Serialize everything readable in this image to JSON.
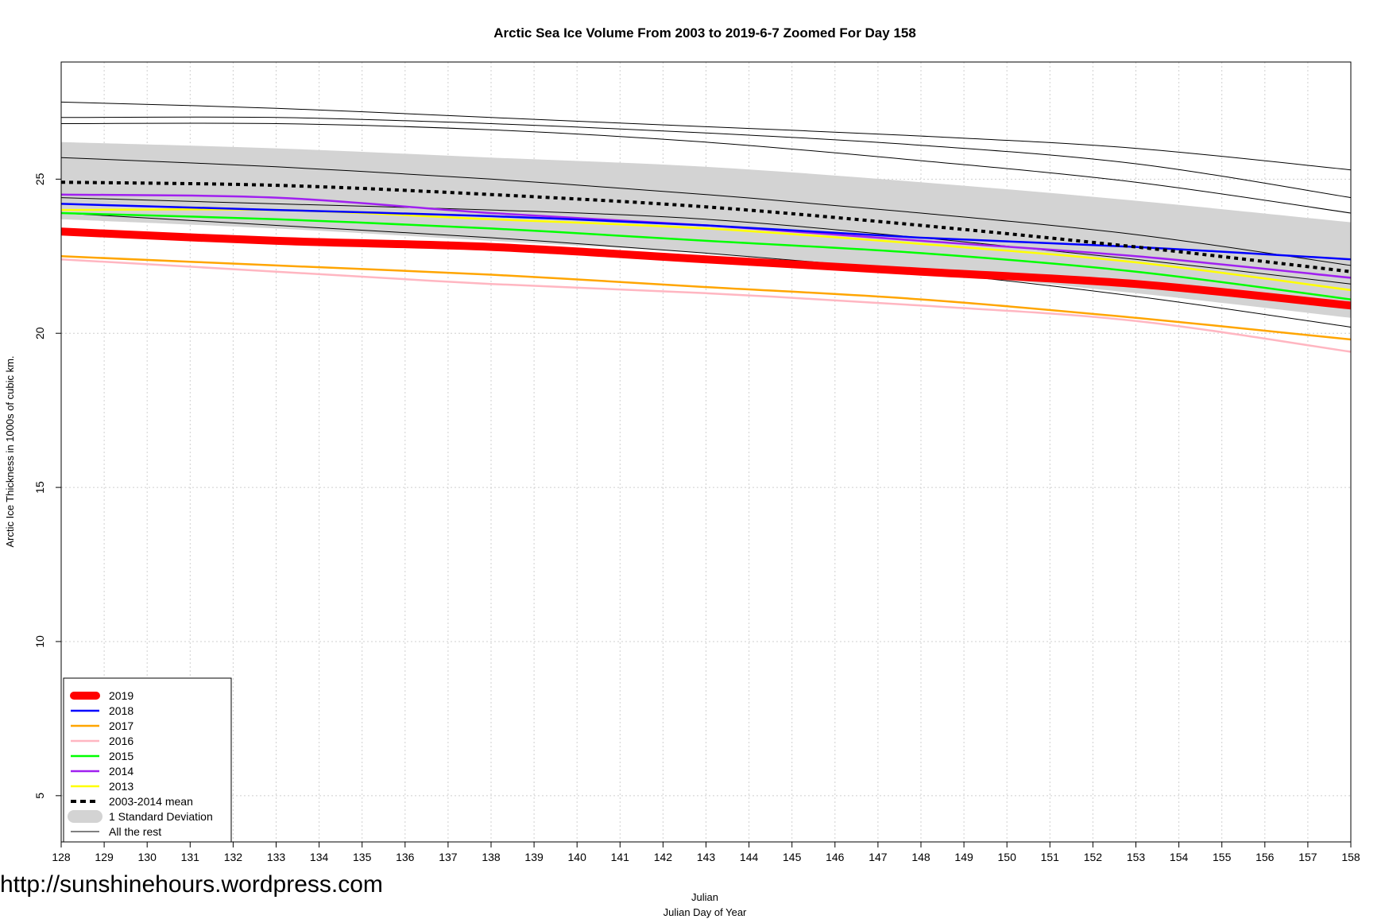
{
  "watermark": "http://sunshinehours.wordpress.com",
  "chart_data": {
    "type": "line",
    "title": "Arctic Sea Ice Volume From 2003 to 2019-6-7 Zoomed For Day 158",
    "xlabel": "Julian",
    "xlabel2": "Julian Day of Year",
    "ylabel": "Arctic Ice Thickness in 1000s of cubic km.",
    "xlim": [
      128,
      158
    ],
    "ylim": [
      3.5,
      28.8
    ],
    "x_ticks": [
      128,
      129,
      130,
      131,
      132,
      133,
      134,
      135,
      136,
      137,
      138,
      139,
      140,
      141,
      142,
      143,
      144,
      145,
      146,
      147,
      148,
      149,
      150,
      151,
      152,
      153,
      154,
      155,
      156,
      157,
      158
    ],
    "y_ticks": [
      5,
      10,
      15,
      20,
      25
    ],
    "grid": true,
    "x": [
      128,
      133,
      138,
      143,
      148,
      153,
      158
    ],
    "std_band": {
      "name": "1 Standard Deviation",
      "color": "#d3d3d3",
      "upper": [
        26.2,
        26.0,
        25.7,
        25.4,
        24.9,
        24.3,
        23.6
      ],
      "lower": [
        23.7,
        23.4,
        23.0,
        22.6,
        22.0,
        21.3,
        20.5
      ]
    },
    "mean": {
      "name": "2003-2014 mean",
      "color": "#000000",
      "values": [
        24.9,
        24.8,
        24.5,
        24.1,
        23.5,
        22.8,
        22.0
      ]
    },
    "rest": {
      "name": "All the rest",
      "color": "#000000",
      "lines": [
        [
          27.5,
          27.3,
          27.0,
          26.7,
          26.4,
          26.0,
          25.3
        ],
        [
          27.0,
          27.0,
          26.8,
          26.5,
          26.1,
          25.5,
          24.4
        ],
        [
          26.8,
          26.8,
          26.6,
          26.2,
          25.6,
          24.9,
          23.9
        ],
        [
          25.7,
          25.4,
          25.0,
          24.5,
          23.9,
          23.2,
          22.2
        ],
        [
          24.4,
          24.2,
          24.0,
          23.7,
          23.1,
          22.4,
          21.6
        ],
        [
          23.9,
          23.5,
          23.1,
          22.6,
          22.0,
          21.2,
          20.2
        ]
      ]
    },
    "series": [
      {
        "name": "2019",
        "color": "#ff0000",
        "width": 10,
        "values": [
          23.3,
          23.0,
          22.8,
          22.4,
          22.0,
          21.6,
          20.9
        ]
      },
      {
        "name": "2018",
        "color": "#0000ff",
        "width": 2.5,
        "values": [
          24.2,
          24.0,
          23.8,
          23.5,
          23.1,
          22.8,
          22.4
        ]
      },
      {
        "name": "2017",
        "color": "#ffa500",
        "width": 2.5,
        "values": [
          22.5,
          22.2,
          21.9,
          21.5,
          21.1,
          20.5,
          19.8
        ]
      },
      {
        "name": "2016",
        "color": "#ffb6c1",
        "width": 2.5,
        "values": [
          22.4,
          22.0,
          21.6,
          21.3,
          20.9,
          20.4,
          19.4
        ]
      },
      {
        "name": "2015",
        "color": "#00ff00",
        "width": 2.5,
        "values": [
          23.9,
          23.7,
          23.4,
          23.0,
          22.6,
          22.0,
          21.1
        ]
      },
      {
        "name": "2014",
        "color": "#a020f0",
        "width": 2.5,
        "values": [
          24.5,
          24.4,
          23.9,
          23.5,
          23.0,
          22.5,
          21.8
        ]
      },
      {
        "name": "2013",
        "color": "#ffff00",
        "width": 2.5,
        "values": [
          24.0,
          24.0,
          23.7,
          23.4,
          22.9,
          22.3,
          21.4
        ]
      }
    ],
    "legend": {
      "position": "bottom-left",
      "entries": [
        {
          "label": "2019",
          "color": "#ff0000",
          "style": "thick"
        },
        {
          "label": "2018",
          "color": "#0000ff",
          "style": "line"
        },
        {
          "label": "2017",
          "color": "#ffa500",
          "style": "line"
        },
        {
          "label": "2016",
          "color": "#ffb6c1",
          "style": "line"
        },
        {
          "label": "2015",
          "color": "#00ff00",
          "style": "line"
        },
        {
          "label": "2014",
          "color": "#a020f0",
          "style": "line"
        },
        {
          "label": "2013",
          "color": "#ffff00",
          "style": "line"
        },
        {
          "label": "2003-2014 mean",
          "color": "#000000",
          "style": "dashed"
        },
        {
          "label": "1 Standard Deviation",
          "color": "#d3d3d3",
          "style": "band"
        },
        {
          "label": "All the rest",
          "color": "#000000",
          "style": "thin"
        }
      ]
    }
  }
}
